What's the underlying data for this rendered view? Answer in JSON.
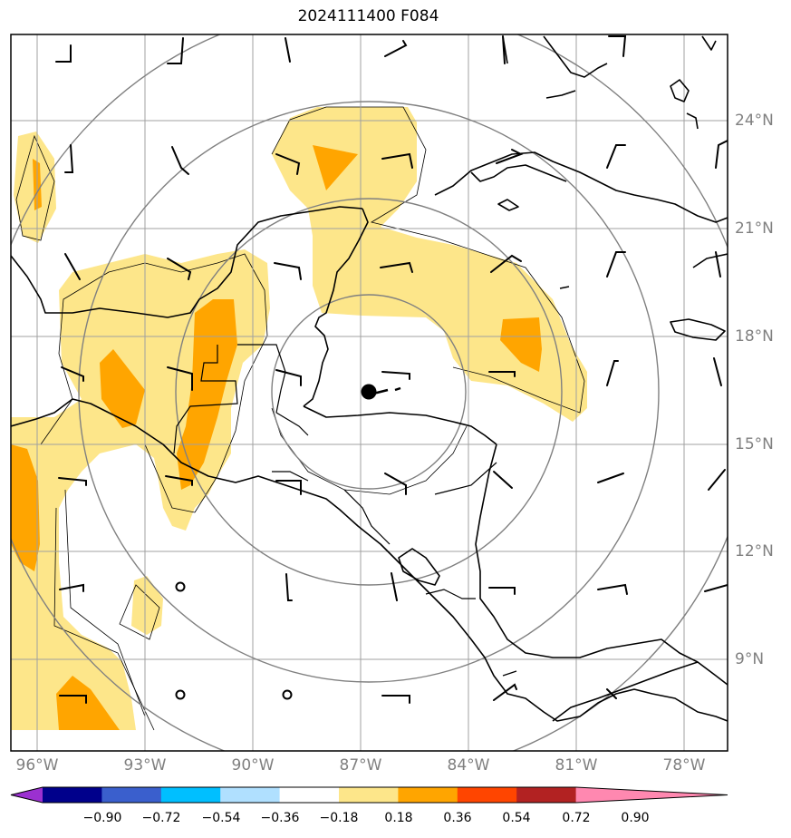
{
  "title": "2024111400 F084",
  "lon_ticks": [
    "96°W",
    "93°W",
    "90°W",
    "87°W",
    "84°W",
    "81°W",
    "78°W"
  ],
  "lat_ticks": [
    "24°N",
    "21°N",
    "18°N",
    "15°N",
    "12°N",
    "9°N"
  ],
  "colorbar": {
    "labels": [
      "−0.90",
      "−0.72",
      "−0.54",
      "−0.36",
      "−0.18",
      "0.18",
      "0.36",
      "0.54",
      "0.72",
      "0.90"
    ],
    "colors": [
      "#9b30d0",
      "#00008b",
      "#3a5fcd",
      "#00bfff",
      "#b0e0ff",
      "#ffffff",
      "#fde68a",
      "#ffa500",
      "#ff4500",
      "#b22222",
      "#ff88b0"
    ]
  },
  "fill_colors": {
    "light": "#fde68a",
    "dark": "#ffa500"
  },
  "storm_marker": "filled-circle",
  "line_colors": {
    "coast": "#000000",
    "grid": "#a0a0a0",
    "rings": "#808080"
  }
}
